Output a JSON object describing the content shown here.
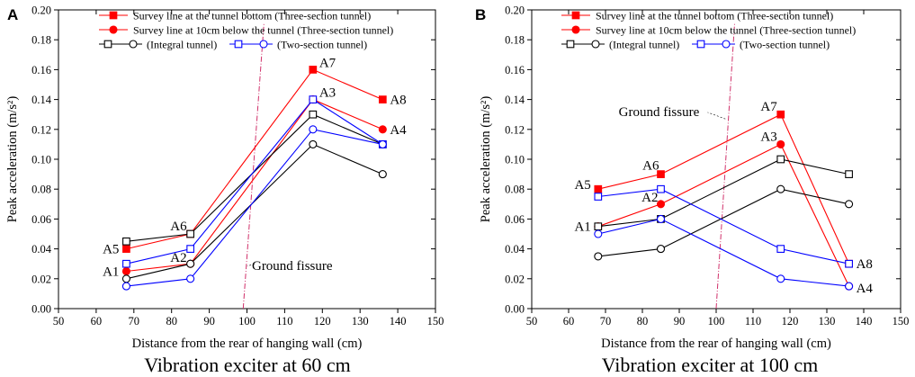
{
  "chart_data": [
    {
      "panel": "A",
      "type": "line",
      "caption": "Vibration exciter at 60 cm",
      "xlabel": "Distance from the rear of hanging wall (cm)",
      "ylabel": "Peak acceleration (m/s²)",
      "xlim": [
        50,
        150
      ],
      "ylim": [
        0,
        0.2
      ],
      "xticks": [
        "50",
        "60",
        "70",
        "80",
        "90",
        "100",
        "110",
        "120",
        "130",
        "140",
        "150"
      ],
      "yticks": [
        "0.00",
        "0.02",
        "0.04",
        "0.06",
        "0.08",
        "0.10",
        "0.12",
        "0.14",
        "0.16",
        "0.18",
        "0.20"
      ],
      "legend": [
        "Survey line at the tunnel bottom (Three-section tunnel)",
        "Survey line at 10cm below the tunnel (Three-section tunnel)",
        "(Integral tunnel)",
        "(Two-section tunnel)"
      ],
      "x": [
        68,
        85,
        117.5,
        136
      ],
      "series": [
        {
          "name": "Three-section bottom",
          "color": "#ff0000",
          "marker": "square",
          "filled": true,
          "values": [
            0.04,
            0.05,
            0.16,
            0.14
          ]
        },
        {
          "name": "Three-section 10cm below",
          "color": "#ff0000",
          "marker": "circle",
          "filled": true,
          "values": [
            0.025,
            0.03,
            0.14,
            0.12
          ]
        },
        {
          "name": "Integral bottom",
          "color": "#000000",
          "marker": "square",
          "filled": false,
          "values": [
            0.045,
            0.05,
            0.13,
            0.11
          ]
        },
        {
          "name": "Integral 10cm below",
          "color": "#000000",
          "marker": "circle",
          "filled": false,
          "values": [
            0.02,
            0.03,
            0.11,
            0.09
          ]
        },
        {
          "name": "Two-section bottom",
          "color": "#0000ff",
          "marker": "square",
          "filled": false,
          "values": [
            0.03,
            0.04,
            0.14,
            0.11
          ]
        },
        {
          "name": "Two-section 10cm below",
          "color": "#0000ff",
          "marker": "circle",
          "filled": false,
          "values": [
            0.015,
            0.02,
            0.12,
            0.11
          ]
        }
      ],
      "point_labels": [
        {
          "text": "A5",
          "x": 68,
          "y": 0.04,
          "anchor": "end",
          "dx": -8,
          "dy": 5
        },
        {
          "text": "A1",
          "x": 68,
          "y": 0.025,
          "anchor": "end",
          "dx": -8,
          "dy": 5
        },
        {
          "text": "A6",
          "x": 85,
          "y": 0.05,
          "anchor": "end",
          "dx": -4,
          "dy": -4
        },
        {
          "text": "A2",
          "x": 85,
          "y": 0.03,
          "anchor": "end",
          "dx": -4,
          "dy": -2
        },
        {
          "text": "A7",
          "x": 117.5,
          "y": 0.16,
          "anchor": "start",
          "dx": 7,
          "dy": -3
        },
        {
          "text": "A3",
          "x": 117.5,
          "y": 0.14,
          "anchor": "start",
          "dx": 7,
          "dy": -3
        },
        {
          "text": "A8",
          "x": 136,
          "y": 0.14,
          "anchor": "start",
          "dx": 8,
          "dy": 5
        },
        {
          "text": "A4",
          "x": 136,
          "y": 0.12,
          "anchor": "start",
          "dx": 8,
          "dy": 5
        }
      ],
      "fissure": {
        "x1": 99,
        "x2": 104.5,
        "label": "Ground fissure",
        "label_x": 112,
        "label_y": 0.026,
        "leader_x": 102,
        "leader_y": 0.03
      }
    },
    {
      "panel": "B",
      "type": "line",
      "caption": "Vibration exciter at 100 cm",
      "xlabel": "Distance from the rear of hanging wall (cm)",
      "ylabel": "Peak acceleration (m/s²)",
      "xlim": [
        50,
        150
      ],
      "ylim": [
        0,
        0.2
      ],
      "xticks": [
        "50",
        "60",
        "70",
        "80",
        "90",
        "100",
        "110",
        "120",
        "130",
        "140",
        "150"
      ],
      "yticks": [
        "0.00",
        "0.02",
        "0.04",
        "0.06",
        "0.08",
        "0.10",
        "0.12",
        "0.14",
        "0.16",
        "0.18",
        "0.20"
      ],
      "legend": [
        "Survey line at the tunnel bottom (Three-section tunnel)",
        "Survey line at 10cm below the tunnel (Three-section tunnel)",
        "(Integral tunnel)",
        "(Two-section tunnel)"
      ],
      "x": [
        68,
        85,
        117.5,
        136
      ],
      "series": [
        {
          "name": "Three-section bottom",
          "color": "#ff0000",
          "marker": "square",
          "filled": true,
          "values": [
            0.08,
            0.09,
            0.13,
            0.03
          ]
        },
        {
          "name": "Three-section 10cm below",
          "color": "#ff0000",
          "marker": "circle",
          "filled": true,
          "values": [
            0.055,
            0.07,
            0.11,
            0.015
          ]
        },
        {
          "name": "Integral bottom",
          "color": "#000000",
          "marker": "square",
          "filled": false,
          "values": [
            0.055,
            0.06,
            0.1,
            0.09
          ]
        },
        {
          "name": "Integral 10cm below",
          "color": "#000000",
          "marker": "circle",
          "filled": false,
          "values": [
            0.035,
            0.04,
            0.08,
            0.07
          ]
        },
        {
          "name": "Two-section bottom",
          "color": "#0000ff",
          "marker": "square",
          "filled": false,
          "values": [
            0.075,
            0.08,
            0.04,
            0.03
          ]
        },
        {
          "name": "Two-section 10cm below",
          "color": "#0000ff",
          "marker": "circle",
          "filled": false,
          "values": [
            0.05,
            0.06,
            0.02,
            0.015
          ]
        }
      ],
      "point_labels": [
        {
          "text": "A5",
          "x": 68,
          "y": 0.08,
          "anchor": "end",
          "dx": -8,
          "dy": 0
        },
        {
          "text": "A1",
          "x": 68,
          "y": 0.055,
          "anchor": "end",
          "dx": -8,
          "dy": 5
        },
        {
          "text": "A6",
          "x": 85,
          "y": 0.09,
          "anchor": "end",
          "dx": -2,
          "dy": -5
        },
        {
          "text": "A2",
          "x": 85,
          "y": 0.07,
          "anchor": "end",
          "dx": -3,
          "dy": -3
        },
        {
          "text": "A7",
          "x": 117.5,
          "y": 0.13,
          "anchor": "end",
          "dx": -4,
          "dy": -4
        },
        {
          "text": "A3",
          "x": 117.5,
          "y": 0.11,
          "anchor": "end",
          "dx": -4,
          "dy": -4
        },
        {
          "text": "A8",
          "x": 136,
          "y": 0.03,
          "anchor": "start",
          "dx": 8,
          "dy": 5
        },
        {
          "text": "A4",
          "x": 136,
          "y": 0.015,
          "anchor": "start",
          "dx": 8,
          "dy": 7
        }
      ],
      "fissure": {
        "x1": 100,
        "x2": 105,
        "label": "Ground fissure",
        "label_x": 84.5,
        "label_y": 0.129,
        "leader_x": 102.5,
        "leader_y": 0.127
      }
    }
  ]
}
